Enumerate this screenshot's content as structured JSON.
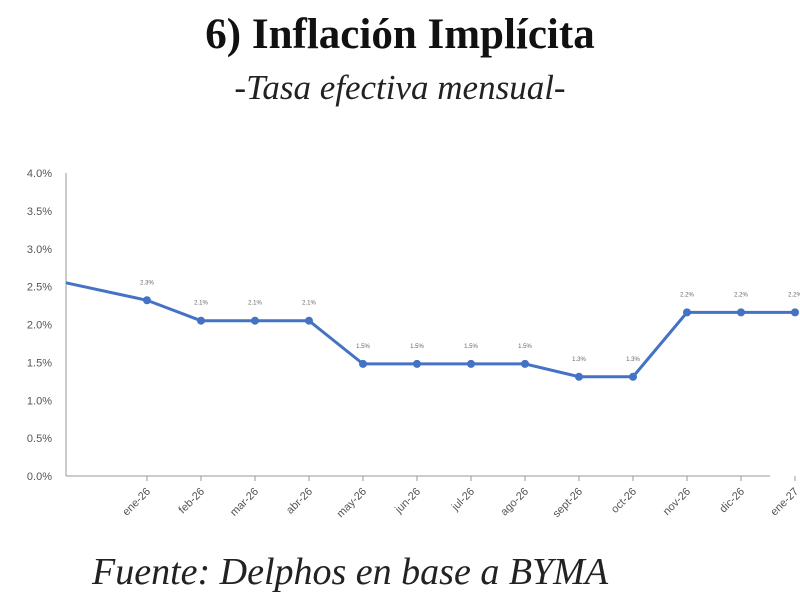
{
  "header": {
    "title": "6) Inflación Implícita",
    "subtitle": "-Tasa efectiva mensual-"
  },
  "footer": {
    "source": "Fuente: Delphos en base a BYMA"
  },
  "chart_data": {
    "type": "line",
    "title": "6) Inflación Implícita",
    "subtitle": "-Tasa efectiva mensual-",
    "xlabel": "",
    "ylabel": "",
    "categories": [
      "ene-26",
      "feb-26",
      "mar-26",
      "abr-26",
      "may-26",
      "jun-26",
      "jul-26",
      "ago-26",
      "sept-26",
      "oct-26",
      "nov-26",
      "dic-26",
      "ene-27"
    ],
    "y_ticks": [
      "0.0%",
      "0.5%",
      "1.0%",
      "1.5%",
      "2.0%",
      "2.5%",
      "3.0%",
      "3.5%",
      "4.0%"
    ],
    "ylim": [
      0,
      4.0
    ],
    "series_start_value": 2.55,
    "series": [
      {
        "values": [
          2.32,
          2.05,
          2.05,
          2.05,
          1.48,
          1.48,
          1.48,
          1.48,
          1.31,
          1.31,
          2.16,
          2.16,
          2.16
        ],
        "data_labels": [
          "2.3%",
          "2.1%",
          "2.1%",
          "2.1%",
          "1.5%",
          "1.5%",
          "1.5%",
          "1.5%",
          "1.3%",
          "1.3%",
          "2.2%",
          "2.2%",
          "2.2%"
        ]
      }
    ],
    "line_color": "#4472c4",
    "grid": false,
    "legend": "none"
  }
}
